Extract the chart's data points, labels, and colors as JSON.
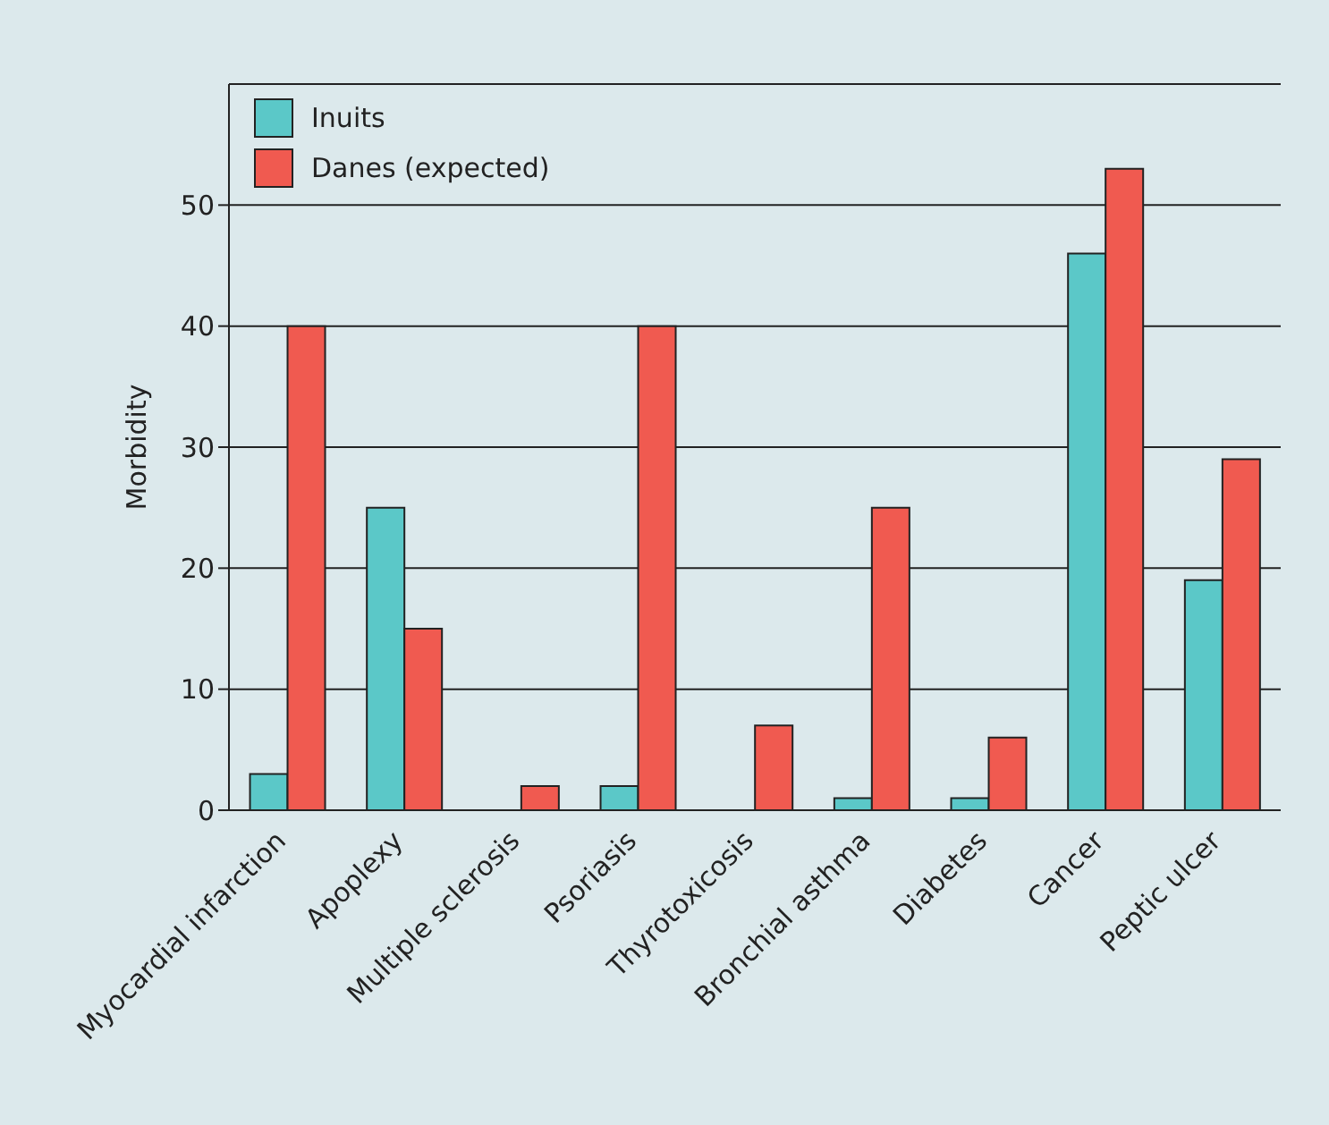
{
  "chart_data": {
    "type": "bar",
    "ylabel": "Morbidity",
    "categories": [
      "Myocardial infarction",
      "Apoplexy",
      "Multiple sclerosis",
      "Psoriasis",
      "Thyrotoxicosis",
      "Bronchial asthma",
      "Diabetes",
      "Cancer",
      "Peptic ulcer"
    ],
    "series": [
      {
        "name": "Inuits",
        "color": "#5bc8c8",
        "values": [
          3,
          25,
          0,
          2,
          0,
          1,
          1,
          46,
          19
        ]
      },
      {
        "name": "Danes (expected)",
        "color": "#f05a50",
        "values": [
          40,
          15,
          2,
          40,
          7,
          25,
          6,
          53,
          29
        ]
      }
    ],
    "ylim": [
      0,
      60
    ],
    "yticks": [
      0,
      10,
      20,
      30,
      40,
      50
    ],
    "grid": "y",
    "legend": "top left"
  }
}
